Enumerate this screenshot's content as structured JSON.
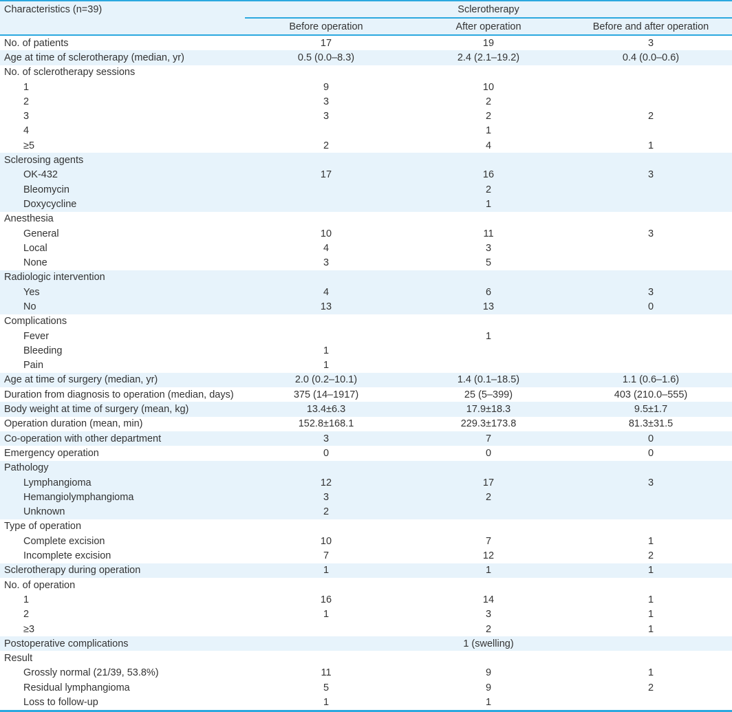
{
  "colors": {
    "accent_blue": "#2ba8df",
    "row_shade": "#e7f3fb",
    "text": "#333333"
  },
  "table": {
    "col1_header": "Characteristics (n=39)",
    "group_header": "Sclerotherapy",
    "sub_headers": [
      "Before operation",
      "After operation",
      "Before and after operation"
    ],
    "rows": [
      {
        "label": "No. of patients",
        "indent": 0,
        "shaded": false,
        "values": [
          "17",
          "19",
          "3"
        ]
      },
      {
        "label": "Age at time of sclerotherapy (median, yr)",
        "indent": 0,
        "shaded": true,
        "values": [
          "0.5 (0.0–8.3)",
          "2.4 (2.1–19.2)",
          "0.4 (0.0–0.6)"
        ]
      },
      {
        "label": "No. of sclerotherapy sessions",
        "indent": 0,
        "shaded": false,
        "values": [
          "",
          "",
          ""
        ]
      },
      {
        "label": "1",
        "indent": 1,
        "shaded": false,
        "values": [
          "9",
          "10",
          ""
        ]
      },
      {
        "label": "2",
        "indent": 1,
        "shaded": false,
        "values": [
          "3",
          "2",
          ""
        ]
      },
      {
        "label": "3",
        "indent": 1,
        "shaded": false,
        "values": [
          "3",
          "2",
          "2"
        ]
      },
      {
        "label": "4",
        "indent": 1,
        "shaded": false,
        "values": [
          "",
          "1",
          ""
        ]
      },
      {
        "label": "≥5",
        "indent": 1,
        "shaded": false,
        "values": [
          "2",
          "4",
          "1"
        ]
      },
      {
        "label": "Sclerosing agents",
        "indent": 0,
        "shaded": true,
        "values": [
          "",
          "",
          ""
        ]
      },
      {
        "label": "OK-432",
        "indent": 1,
        "shaded": true,
        "values": [
          "17",
          "16",
          "3"
        ]
      },
      {
        "label": "Bleomycin",
        "indent": 1,
        "shaded": true,
        "values": [
          "",
          "2",
          ""
        ]
      },
      {
        "label": "Doxycycline",
        "indent": 1,
        "shaded": true,
        "values": [
          "",
          "1",
          ""
        ]
      },
      {
        "label": "Anesthesia",
        "indent": 0,
        "shaded": false,
        "values": [
          "",
          "",
          ""
        ]
      },
      {
        "label": "General",
        "indent": 1,
        "shaded": false,
        "values": [
          "10",
          "11",
          "3"
        ]
      },
      {
        "label": "Local",
        "indent": 1,
        "shaded": false,
        "values": [
          "4",
          "3",
          ""
        ]
      },
      {
        "label": "None",
        "indent": 1,
        "shaded": false,
        "values": [
          "3",
          "5",
          ""
        ]
      },
      {
        "label": "Radiologic intervention",
        "indent": 0,
        "shaded": true,
        "values": [
          "",
          "",
          ""
        ]
      },
      {
        "label": "Yes",
        "indent": 1,
        "shaded": true,
        "values": [
          "4",
          "6",
          "3"
        ]
      },
      {
        "label": "No",
        "indent": 1,
        "shaded": true,
        "values": [
          "13",
          "13",
          "0"
        ]
      },
      {
        "label": "Complications",
        "indent": 0,
        "shaded": false,
        "values": [
          "",
          "",
          ""
        ]
      },
      {
        "label": "Fever",
        "indent": 1,
        "shaded": false,
        "values": [
          "",
          "1",
          ""
        ]
      },
      {
        "label": "Bleeding",
        "indent": 1,
        "shaded": false,
        "values": [
          "1",
          "",
          ""
        ]
      },
      {
        "label": "Pain",
        "indent": 1,
        "shaded": false,
        "values": [
          "1",
          "",
          ""
        ]
      },
      {
        "label": "Age at time of surgery (median, yr)",
        "indent": 0,
        "shaded": true,
        "values": [
          "2.0 (0.2–10.1)",
          "1.4 (0.1–18.5)",
          "1.1 (0.6–1.6)"
        ]
      },
      {
        "label": "Duration from diagnosis to operation (median, days)",
        "indent": 0,
        "shaded": false,
        "values": [
          "375 (14–1917)",
          "25 (5–399)",
          "403 (210.0–555)"
        ]
      },
      {
        "label": "Body weight at time of surgery (mean, kg)",
        "indent": 0,
        "shaded": true,
        "values": [
          "13.4±6.3",
          "17.9±18.3",
          "9.5±1.7"
        ]
      },
      {
        "label": "Operation duration (mean, min)",
        "indent": 0,
        "shaded": false,
        "values": [
          "152.8±168.1",
          "229.3±173.8",
          "81.3±31.5"
        ]
      },
      {
        "label": "Co-operation with other department",
        "indent": 0,
        "shaded": true,
        "values": [
          "3",
          "7",
          "0"
        ]
      },
      {
        "label": "Emergency operation",
        "indent": 0,
        "shaded": false,
        "values": [
          "0",
          "0",
          "0"
        ]
      },
      {
        "label": "Pathology",
        "indent": 0,
        "shaded": true,
        "values": [
          "",
          "",
          ""
        ]
      },
      {
        "label": "Lymphangioma",
        "indent": 1,
        "shaded": true,
        "values": [
          "12",
          "17",
          "3"
        ]
      },
      {
        "label": "Hemangiolymphangioma",
        "indent": 1,
        "shaded": true,
        "values": [
          "3",
          "2",
          ""
        ]
      },
      {
        "label": "Unknown",
        "indent": 1,
        "shaded": true,
        "values": [
          "2",
          "",
          ""
        ]
      },
      {
        "label": "Type of operation",
        "indent": 0,
        "shaded": false,
        "values": [
          "",
          "",
          ""
        ]
      },
      {
        "label": "Complete excision",
        "indent": 1,
        "shaded": false,
        "values": [
          "10",
          "7",
          "1"
        ]
      },
      {
        "label": "Incomplete excision",
        "indent": 1,
        "shaded": false,
        "values": [
          "7",
          "12",
          "2"
        ]
      },
      {
        "label": "Sclerotherapy during operation",
        "indent": 0,
        "shaded": true,
        "values": [
          "1",
          "1",
          "1"
        ]
      },
      {
        "label": "No. of operation",
        "indent": 0,
        "shaded": false,
        "values": [
          "",
          "",
          ""
        ]
      },
      {
        "label": "1",
        "indent": 1,
        "shaded": false,
        "values": [
          "16",
          "14",
          "1"
        ]
      },
      {
        "label": "2",
        "indent": 1,
        "shaded": false,
        "values": [
          "1",
          "3",
          "1"
        ]
      },
      {
        "label": "≥3",
        "indent": 1,
        "shaded": false,
        "values": [
          "",
          "2",
          "1"
        ]
      },
      {
        "label": "Postoperative complications",
        "indent": 0,
        "shaded": true,
        "values": [
          "",
          "1 (swelling)",
          ""
        ]
      },
      {
        "label": "Result",
        "indent": 0,
        "shaded": false,
        "values": [
          "",
          "",
          ""
        ]
      },
      {
        "label": "Grossly normal (21/39, 53.8%)",
        "indent": 1,
        "shaded": false,
        "values": [
          "11",
          "9",
          "1"
        ]
      },
      {
        "label": "Residual lymphangioma",
        "indent": 1,
        "shaded": false,
        "values": [
          "5",
          "9",
          "2"
        ]
      },
      {
        "label": "Loss to follow-up",
        "indent": 1,
        "shaded": false,
        "values": [
          "1",
          "1",
          ""
        ]
      }
    ]
  }
}
